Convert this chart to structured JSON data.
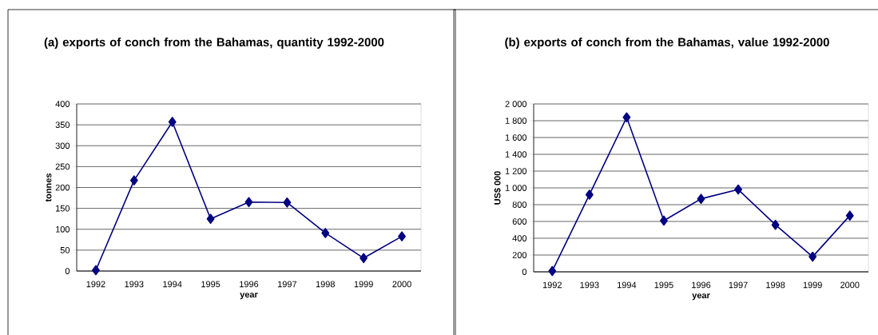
{
  "chart_data": [
    {
      "type": "line",
      "title": "(a) exports of conch from the Bahamas, quantity 1992-2000",
      "xlabel": "year",
      "ylabel": "tonnes",
      "categories": [
        "1992",
        "1993",
        "1994",
        "1995",
        "1996",
        "1997",
        "1998",
        "1999",
        "2000"
      ],
      "series": [
        {
          "color": "#000080",
          "values": [
            2,
            217,
            357,
            125,
            165,
            164,
            91,
            31,
            83
          ]
        }
      ],
      "ylim": [
        0,
        400
      ],
      "yticks": [
        0,
        50,
        100,
        150,
        200,
        250,
        300,
        350,
        400
      ],
      "grid": "y",
      "marker": "diamond",
      "line_style": "solid"
    },
    {
      "type": "line",
      "title": "(b) exports of conch from the Bahamas, value 1992-2000",
      "xlabel": "year",
      "ylabel": "US$ 000",
      "categories": [
        "1992",
        "1993",
        "1994",
        "1995",
        "1996",
        "1997",
        "1998",
        "1999",
        "2000"
      ],
      "series": [
        {
          "color": "#000080",
          "values": [
            10,
            920,
            1840,
            610,
            870,
            980,
            560,
            180,
            670
          ]
        }
      ],
      "ylim": [
        0,
        2000
      ],
      "yticks": [
        0,
        200,
        400,
        600,
        800,
        {
          "value": 1000,
          "label": "1 000"
        },
        {
          "value": 1200,
          "label": "1 200"
        },
        {
          "value": 1400,
          "label": "1 400"
        },
        {
          "value": 1600,
          "label": "1 600"
        },
        {
          "value": 1800,
          "label": "1 800"
        },
        {
          "value": 2000,
          "label": "2 000"
        }
      ],
      "grid": "y",
      "marker": "diamond",
      "line_style": "solid"
    }
  ]
}
